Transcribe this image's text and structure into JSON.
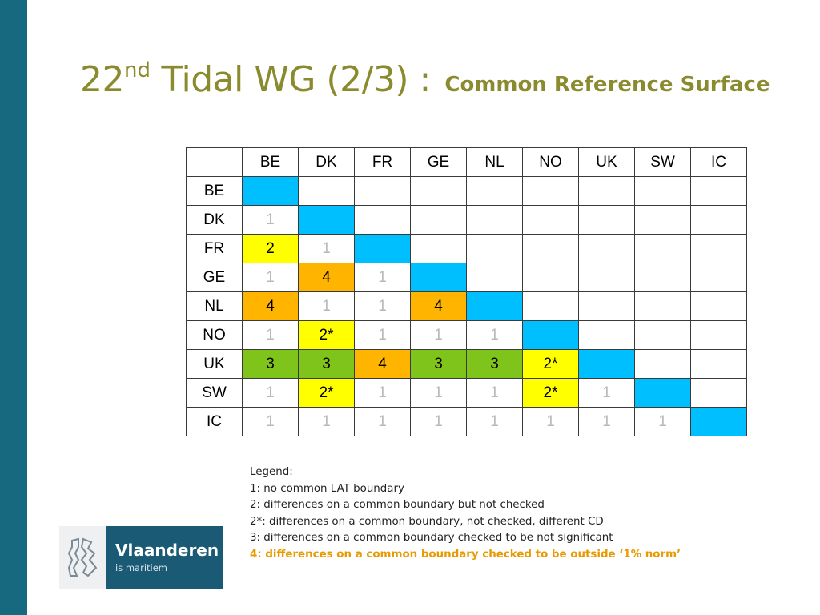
{
  "title": {
    "number": "22",
    "superscript": "nd",
    "main": " Tidal WG (2/3) : ",
    "subtitle": "Common Reference Surface"
  },
  "matrix": {
    "columns": [
      "BE",
      "DK",
      "FR",
      "GE",
      "NL",
      "NO",
      "UK",
      "SW",
      "IC"
    ],
    "rows": [
      {
        "label": "BE",
        "cells": [
          "diag",
          "",
          "",
          "",
          "",
          "",
          "",
          "",
          ""
        ]
      },
      {
        "label": "DK",
        "cells": [
          "1",
          "diag",
          "",
          "",
          "",
          "",
          "",
          "",
          ""
        ]
      },
      {
        "label": "FR",
        "cells": [
          "2",
          "1",
          "diag",
          "",
          "",
          "",
          "",
          "",
          ""
        ]
      },
      {
        "label": "GE",
        "cells": [
          "1",
          "4",
          "1",
          "diag",
          "",
          "",
          "",
          "",
          ""
        ]
      },
      {
        "label": "NL",
        "cells": [
          "4",
          "1",
          "1",
          "4",
          "diag",
          "",
          "",
          "",
          ""
        ]
      },
      {
        "label": "NO",
        "cells": [
          "1",
          "2*",
          "1",
          "1",
          "1",
          "diag",
          "",
          "",
          ""
        ]
      },
      {
        "label": "UK",
        "cells": [
          "3",
          "3",
          "4",
          "3",
          "3",
          "2*",
          "diag",
          "",
          ""
        ]
      },
      {
        "label": "SW",
        "cells": [
          "1",
          "2*",
          "1",
          "1",
          "1",
          "2*",
          "1",
          "diag",
          ""
        ]
      },
      {
        "label": "IC",
        "cells": [
          "1",
          "1",
          "1",
          "1",
          "1",
          "1",
          "1",
          "1",
          "diag"
        ]
      }
    ],
    "colors": {
      "diag": "#00bfff",
      "2": "#ffff00",
      "2*": "#ffff00",
      "3": "#7fc41b",
      "4": "#ffb400",
      "1_text": "#b8b8b8"
    }
  },
  "legend": {
    "heading": "Legend:",
    "items": [
      "1: no common LAT boundary",
      "2: differences on a common boundary but not checked",
      "2*: differences on a common boundary, not checked, different CD",
      "3: differences on a common boundary checked to be not significant"
    ],
    "highlight": "4: differences on a common boundary checked to be outside ‘1% norm’",
    "highlight_color": "#e89a00"
  },
  "logo": {
    "name": "Vlaanderen",
    "tagline": "is maritiem",
    "icon": "flemish-lion-icon",
    "bg_color": "#1a5a74"
  },
  "accent": {
    "sidebar_color": "#17697f",
    "title_color": "#8a8a2e"
  }
}
